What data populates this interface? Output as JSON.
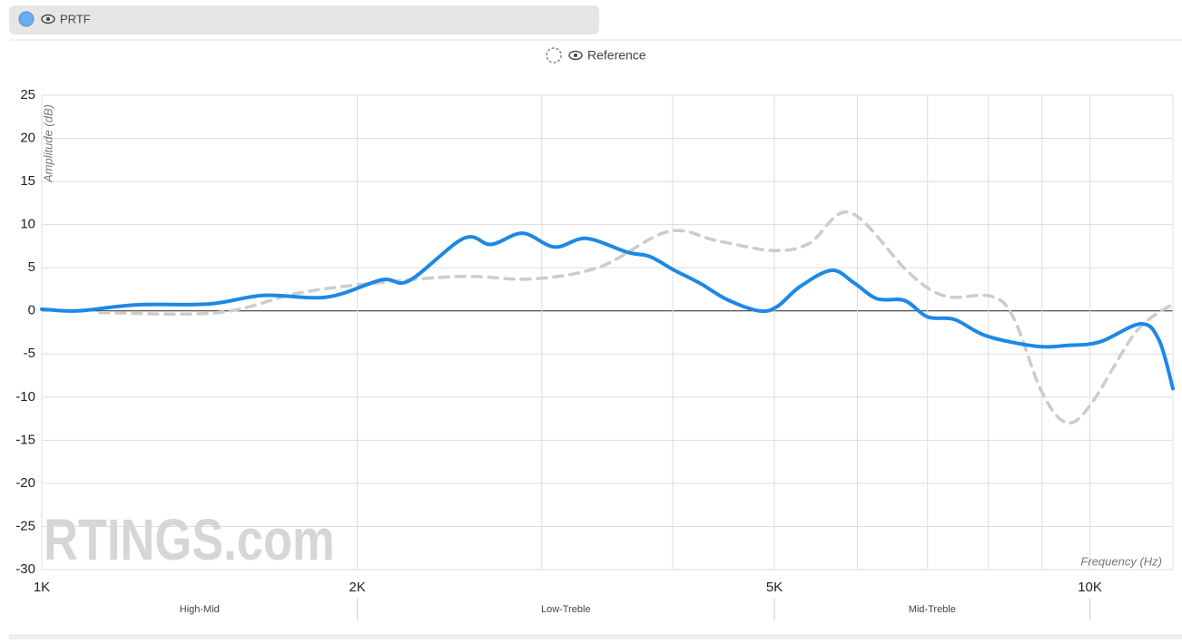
{
  "chart_data": {
    "type": "line",
    "log_x": true,
    "grid": true,
    "y_label": "Amplitude (dB)",
    "x_label": "Frequency (Hz)",
    "watermark": "RTINGS.com",
    "xlim": [
      1000,
      12000
    ],
    "ylim": [
      -30,
      25
    ],
    "xticks": [
      {
        "value": 1000,
        "label": "1K"
      },
      {
        "value": 2000,
        "label": "2K"
      },
      {
        "value": 5000,
        "label": "5K"
      },
      {
        "value": 10000,
        "label": "10K"
      }
    ],
    "xticks_minor": [
      3000,
      4000,
      6000,
      7000,
      8000,
      9000
    ],
    "yticks": [
      25,
      20,
      15,
      10,
      5,
      0,
      -5,
      -10,
      -15,
      -20,
      -25,
      -30
    ],
    "bands": [
      {
        "label": "High-Mid",
        "from": 1000,
        "to": 2000
      },
      {
        "label": "Low-Treble",
        "from": 2000,
        "to": 5000
      },
      {
        "label": "Mid-Treble",
        "from": 5000,
        "to": 10000
      }
    ],
    "series": [
      {
        "name": "PRTF",
        "color": "#1e88e5",
        "dashed": false,
        "x": [
          1000,
          1081,
          1231,
          1444,
          1628,
          1872,
          2111,
          2241,
          2526,
          2683,
          2876,
          3085,
          3307,
          3619,
          3804,
          4000,
          4246,
          4508,
          4835,
          5031,
          5288,
          5672,
          5963,
          6266,
          6656,
          7000,
          7428,
          7963,
          8887,
          9532,
          10221,
          11183,
          11640,
          12000
        ],
        "values": [
          0.2,
          0.0,
          0.7,
          0.8,
          1.8,
          1.6,
          3.6,
          3.5,
          8.4,
          7.7,
          9.0,
          7.4,
          8.4,
          6.8,
          6.3,
          4.8,
          3.2,
          1.3,
          0.0,
          0.5,
          2.8,
          4.7,
          3.2,
          1.4,
          1.2,
          -0.7,
          -1.0,
          -2.9,
          -4.1,
          -4.0,
          -3.6,
          -1.5,
          -3.4,
          -9.0
        ]
      },
      {
        "name": "Reference",
        "color": "#cccccc",
        "dashed": true,
        "x": [
          1136,
          1473,
          1764,
          2111,
          2526,
          2934,
          3408,
          3959,
          4419,
          4982,
          5395,
          5902,
          6721,
          7280,
          8045,
          8455,
          8981,
          9476,
          10000,
          11072,
          12000
        ],
        "values": [
          -0.2,
          -0.2,
          2.1,
          3.3,
          4.0,
          3.7,
          5.1,
          9.2,
          8.1,
          7.0,
          7.8,
          11.4,
          4.4,
          1.7,
          1.7,
          -0.8,
          -9.2,
          -12.9,
          -11.0,
          -2.4,
          0.8
        ]
      }
    ]
  }
}
